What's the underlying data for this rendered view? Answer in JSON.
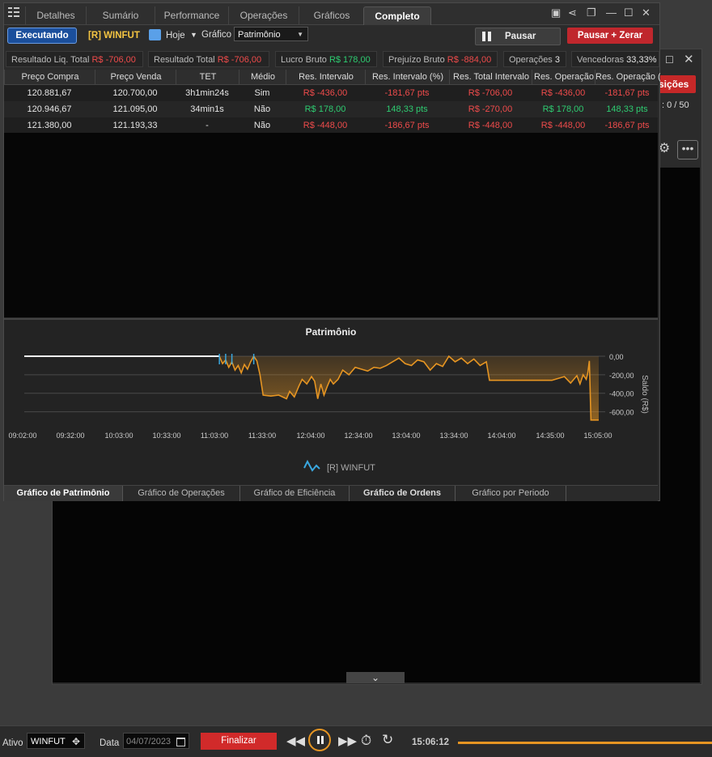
{
  "tabs": [
    "Detalhes",
    "Sumário",
    "Performance",
    "Operações",
    "Gráficos",
    "Completo"
  ],
  "active_tab": "Completo",
  "toolbar": {
    "status_label": "Executando",
    "asset_label": "[R] WINFUT",
    "date_value": "Hoje",
    "chart_label": "Gráfico",
    "chart_select": "Patrimônio",
    "pause_label": "Pausar",
    "pause_reset_label": "Pausar + Zerar"
  },
  "stats": [
    {
      "label": "Resultado Liq. Total",
      "value": "R$ -706,00",
      "tone": "neg"
    },
    {
      "label": "Resultado Total",
      "value": "R$ -706,00",
      "tone": "neg"
    },
    {
      "label": "Lucro Bruto",
      "value": "R$ 178,00",
      "tone": "pos"
    },
    {
      "label": "Prejuízo Bruto",
      "value": "R$ -884,00",
      "tone": "neg"
    },
    {
      "label": "Operações",
      "value": "3",
      "tone": "wht"
    },
    {
      "label": "Vencedoras",
      "value": "33,33%",
      "tone": "wht"
    }
  ],
  "table": {
    "columns": [
      "Preço Compra",
      "Preço Venda",
      "TET",
      "Médio",
      "Res. Intervalo",
      "Res. Intervalo (%)",
      "Res. Total Intervalo",
      "Res. Operação",
      "Res. Operação ("
    ],
    "rows": [
      [
        "120.881,67",
        "120.700,00",
        "3h1min24s",
        "Sim",
        "R$ -436,00",
        "-181,67 pts",
        "R$ -706,00",
        "R$ -436,00",
        "-181,67 pts"
      ],
      [
        "120.946,67",
        "121.095,00",
        "34min1s",
        "Não",
        "R$ 178,00",
        "148,33 pts",
        "R$ -270,00",
        "R$ 178,00",
        "148,33 pts"
      ],
      [
        "121.380,00",
        "121.193,33",
        "-",
        "Não",
        "R$ -448,00",
        "-186,67 pts",
        "R$ -448,00",
        "R$ -448,00",
        "-186,67 pts"
      ]
    ]
  },
  "chart_data": {
    "type": "area",
    "title": "Patrimônio",
    "ylabel": "Saldo (R$)",
    "x_ticks": [
      "09:02:00",
      "09:32:00",
      "10:03:00",
      "10:33:00",
      "11:03:00",
      "11:33:00",
      "12:04:00",
      "12:34:00",
      "13:04:00",
      "13:34:00",
      "14:04:00",
      "14:35:00",
      "15:05:00"
    ],
    "y_ticks": [
      "0,00",
      "-200,00",
      "-400,00",
      "-600,00"
    ],
    "ylim": [
      -700,
      0
    ],
    "legend": "[R] WINFUT",
    "series": [
      {
        "name": "[R] WINFUT",
        "x": [
          "09:02",
          "11:07",
          "11:09",
          "11:11",
          "11:13",
          "11:15",
          "11:17",
          "11:19",
          "11:21",
          "11:23",
          "11:25",
          "11:27",
          "11:29",
          "11:31",
          "11:33",
          "11:35",
          "11:40",
          "11:45",
          "11:50",
          "11:52",
          "11:55",
          "11:58",
          "12:00",
          "12:03",
          "12:06",
          "12:08",
          "12:10",
          "12:12",
          "12:14",
          "12:16",
          "12:18",
          "12:20",
          "12:23",
          "12:26",
          "12:30",
          "12:34",
          "12:38",
          "12:42",
          "12:46",
          "12:50",
          "12:54",
          "12:58",
          "13:02",
          "13:06",
          "13:10",
          "13:14",
          "13:18",
          "13:22",
          "13:26",
          "13:30",
          "13:34",
          "13:38",
          "13:42",
          "13:46",
          "13:50",
          "13:54",
          "13:58",
          "14:00",
          "14:20",
          "14:40",
          "14:48",
          "14:52",
          "14:56",
          "14:58",
          "15:00",
          "15:02",
          "15:03",
          "15:04",
          "15:05",
          "15:07",
          "15:10"
        ],
        "y": [
          0,
          0,
          -80,
          -40,
          -120,
          -60,
          -150,
          -100,
          -180,
          -90,
          -140,
          -60,
          0,
          -50,
          -200,
          -420,
          -430,
          -420,
          -460,
          -380,
          -440,
          -320,
          -250,
          -300,
          -220,
          -270,
          -460,
          -300,
          -420,
          -330,
          -250,
          -300,
          -250,
          -150,
          -200,
          -120,
          -140,
          -160,
          -120,
          -130,
          -100,
          -60,
          -20,
          -80,
          -100,
          -40,
          -60,
          -150,
          -80,
          -110,
          0,
          -60,
          -20,
          -80,
          -30,
          -100,
          -60,
          -260,
          -260,
          -260,
          -220,
          -290,
          -210,
          -300,
          -200,
          -250,
          -180,
          -50,
          -690,
          -690,
          -690
        ]
      }
    ]
  },
  "bottom_tabs": [
    "Gráfico de Patrimônio",
    "Gráfico de Operações",
    "Gráfico de Eficiência",
    "Gráfico de Ordens",
    "Gráfico por Periodo"
  ],
  "background_window": {
    "button_partial": "sições",
    "counter": "0 / 50"
  },
  "player": {
    "ativo_label": "Ativo",
    "ativo_value": "WINFUT",
    "data_label": "Data",
    "data_value": "04/07/2023",
    "finalizar_label": "Finalizar",
    "time": "15:06:12",
    "progress": 1.0
  },
  "colors": {
    "series": "#e69522",
    "legend_icon": "#3aa8e0",
    "negative": "#ef4b4b",
    "positive": "#2ecc71"
  }
}
